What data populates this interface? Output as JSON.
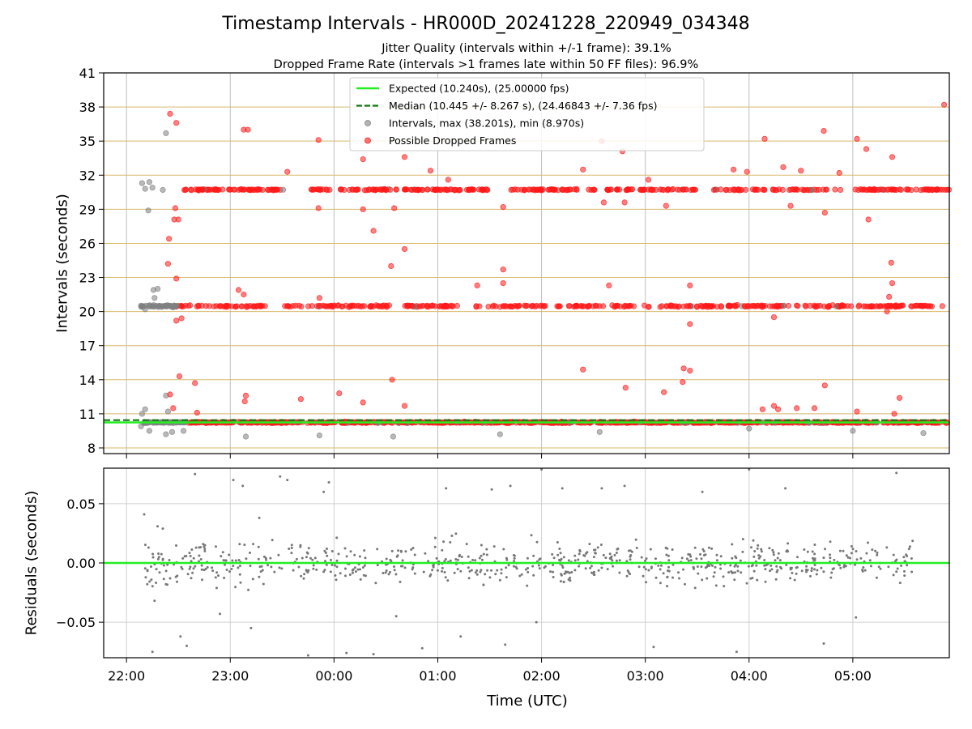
{
  "chart_data": {
    "type": "scatter",
    "title": "Timestamp Intervals - HR000D_20241228_220949_034348",
    "subtitle_lines": [
      "Jitter Quality (intervals within +/-1 frame): 39.1%",
      "Dropped Frame Rate (intervals >1 frames late within 50 FF files): 96.9%"
    ],
    "xlabel": "Time (UTC)",
    "x_tick_labels": [
      "22:00",
      "23:00",
      "00:00",
      "01:00",
      "02:00",
      "03:00",
      "04:00",
      "05:00"
    ],
    "x_range_hours": [
      -0.22,
      7.93
    ],
    "x_tick_hours": [
      0,
      1,
      2,
      3,
      4,
      5,
      6,
      7
    ],
    "top_panel": {
      "ylabel": "Intervals (seconds)",
      "ylim": [
        7.5,
        41
      ],
      "y_ticks": [
        8,
        11,
        14,
        17,
        20,
        23,
        26,
        29,
        32,
        35,
        38,
        41
      ],
      "hgrid_color": "#d9b86a",
      "expected_value": 10.24,
      "median_value": 10.445,
      "max_value": 38.201,
      "min_value": 8.97,
      "legend_position": "upper-center",
      "legend": [
        {
          "label": "Expected (10.240s), (25.00000 fps)",
          "style": "line",
          "color": "#22ee22"
        },
        {
          "label": "Median (10.445 +/- 8.267 s), (24.46843 +/- 7.36 fps)",
          "style": "dashed",
          "color": "#117711"
        },
        {
          "label": "Intervals, max (38.201s), min (8.970s)",
          "style": "marker",
          "color": "#808080"
        },
        {
          "label": "Possible Dropped Frames",
          "style": "marker",
          "color": "#ff1a1a"
        }
      ],
      "series_colors": {
        "intervals": "#808080",
        "dropped": "#ff1a1a"
      },
      "series_levels": [
        10.24,
        20.48,
        30.72
      ],
      "gray_outliers": [
        [
          0.15,
          31.3
        ],
        [
          0.22,
          31.4
        ],
        [
          0.18,
          30.8
        ],
        [
          0.25,
          30.9
        ],
        [
          0.35,
          30.7
        ],
        [
          0.21,
          28.9
        ],
        [
          0.18,
          20.2
        ],
        [
          0.26,
          21.9
        ],
        [
          0.3,
          22.0
        ],
        [
          0.27,
          21.2
        ],
        [
          0.14,
          9.9
        ],
        [
          0.22,
          9.5
        ],
        [
          0.38,
          9.2
        ],
        [
          0.44,
          9.4
        ],
        [
          0.55,
          9.5
        ],
        [
          0.38,
          12.6
        ],
        [
          0.4,
          11.2
        ],
        [
          0.18,
          11.4
        ],
        [
          0.15,
          11.0
        ],
        [
          0.38,
          35.7
        ],
        [
          1.15,
          9.0
        ],
        [
          1.86,
          9.1
        ],
        [
          2.57,
          9.0
        ],
        [
          3.6,
          9.2
        ],
        [
          4.56,
          9.4
        ],
        [
          6.0,
          9.7
        ],
        [
          7.0,
          9.5
        ],
        [
          7.68,
          9.3
        ]
      ],
      "red_outliers": [
        [
          0.42,
          37.4
        ],
        [
          0.48,
          36.6
        ],
        [
          1.13,
          36.0
        ],
        [
          1.17,
          36.0
        ],
        [
          1.85,
          35.1
        ],
        [
          2.28,
          33.4
        ],
        [
          2.68,
          33.6
        ],
        [
          2.93,
          32.4
        ],
        [
          3.1,
          31.6
        ],
        [
          1.55,
          32.3
        ],
        [
          0.47,
          29.1
        ],
        [
          0.5,
          28.1
        ],
        [
          0.46,
          28.1
        ],
        [
          0.41,
          26.4
        ],
        [
          0.4,
          24.2
        ],
        [
          0.48,
          22.9
        ],
        [
          0.48,
          19.2
        ],
        [
          0.53,
          19.4
        ],
        [
          0.51,
          14.3
        ],
        [
          0.42,
          12.7
        ],
        [
          0.45,
          11.5
        ],
        [
          0.66,
          13.7
        ],
        [
          0.68,
          11.1
        ],
        [
          1.08,
          21.9
        ],
        [
          1.13,
          21.5
        ],
        [
          1.15,
          12.6
        ],
        [
          1.14,
          12.1
        ],
        [
          1.85,
          29.1
        ],
        [
          1.86,
          21.2
        ],
        [
          2.28,
          29.0
        ],
        [
          2.38,
          27.1
        ],
        [
          2.55,
          24.0
        ],
        [
          2.58,
          29.1
        ],
        [
          2.68,
          25.5
        ],
        [
          2.68,
          11.7
        ],
        [
          2.56,
          14.0
        ],
        [
          2.28,
          12.0
        ],
        [
          2.05,
          12.8
        ],
        [
          1.68,
          12.3
        ],
        [
          3.38,
          22.3
        ],
        [
          3.63,
          22.5
        ],
        [
          3.63,
          23.7
        ],
        [
          3.63,
          29.2
        ],
        [
          4.4,
          14.9
        ],
        [
          4.4,
          32.5
        ],
        [
          4.58,
          35.0
        ],
        [
          4.6,
          29.6
        ],
        [
          4.65,
          22.3
        ],
        [
          4.78,
          34.1
        ],
        [
          4.8,
          29.6
        ],
        [
          4.81,
          13.3
        ],
        [
          5.03,
          31.6
        ],
        [
          5.2,
          29.3
        ],
        [
          5.18,
          12.9
        ],
        [
          5.36,
          13.8
        ],
        [
          5.37,
          15.0
        ],
        [
          5.43,
          14.8
        ],
        [
          5.43,
          18.9
        ],
        [
          5.43,
          22.3
        ],
        [
          5.85,
          32.5
        ],
        [
          5.98,
          32.3
        ],
        [
          6.15,
          35.2
        ],
        [
          6.33,
          32.7
        ],
        [
          6.4,
          29.3
        ],
        [
          6.5,
          32.4
        ],
        [
          6.13,
          11.4
        ],
        [
          6.24,
          11.7
        ],
        [
          6.28,
          11.4
        ],
        [
          6.46,
          11.5
        ],
        [
          6.63,
          11.5
        ],
        [
          6.24,
          19.5
        ],
        [
          6.72,
          35.9
        ],
        [
          6.73,
          28.7
        ],
        [
          6.73,
          13.5
        ],
        [
          6.87,
          32.2
        ],
        [
          7.04,
          35.2
        ],
        [
          7.13,
          34.3
        ],
        [
          7.15,
          28.1
        ],
        [
          7.04,
          11.2
        ],
        [
          7.33,
          20.0
        ],
        [
          7.35,
          21.3
        ],
        [
          7.4,
          11.0
        ],
        [
          7.45,
          12.4
        ],
        [
          7.37,
          24.3
        ],
        [
          7.38,
          22.5
        ],
        [
          7.38,
          33.6
        ],
        [
          7.88,
          38.2
        ]
      ]
    },
    "bottom_panel": {
      "ylabel": "Residuals (seconds)",
      "ylim": [
        -0.08,
        0.08
      ],
      "y_tick_values": [
        -0.05,
        0.0,
        0.05
      ],
      "y_tick_labels": [
        "−0.05",
        "0.00",
        "0.05"
      ],
      "zero_line_color": "#22ee22",
      "point_color": "#777777",
      "residual_points": [
        [
          0.17,
          0.041
        ],
        [
          0.2,
          -0.018
        ],
        [
          0.25,
          -0.075
        ],
        [
          0.27,
          -0.032
        ],
        [
          0.3,
          0.031
        ],
        [
          0.35,
          0.029
        ],
        [
          0.38,
          -0.018
        ],
        [
          0.42,
          -0.013
        ],
        [
          0.52,
          -0.062
        ],
        [
          0.58,
          -0.07
        ],
        [
          0.66,
          0.075
        ],
        [
          0.9,
          -0.043
        ],
        [
          1.03,
          0.07
        ],
        [
          1.12,
          0.065
        ],
        [
          1.2,
          -0.055
        ],
        [
          1.28,
          0.038
        ],
        [
          1.48,
          0.073
        ],
        [
          1.55,
          0.07
        ],
        [
          1.75,
          -0.078
        ],
        [
          1.9,
          0.06
        ],
        [
          1.95,
          0.068
        ],
        [
          2.12,
          -0.076
        ],
        [
          2.38,
          -0.077
        ],
        [
          2.6,
          -0.045
        ],
        [
          2.85,
          -0.072
        ],
        [
          3.08,
          0.063
        ],
        [
          3.22,
          -0.062
        ],
        [
          3.52,
          0.062
        ],
        [
          3.65,
          -0.069
        ],
        [
          3.7,
          0.065
        ],
        [
          3.95,
          -0.05
        ],
        [
          4.0,
          0.079
        ],
        [
          4.2,
          0.063
        ],
        [
          4.58,
          0.063
        ],
        [
          4.8,
          0.065
        ],
        [
          5.08,
          -0.071
        ],
        [
          5.55,
          0.06
        ],
        [
          5.88,
          -0.075
        ],
        [
          6.0,
          0.079
        ],
        [
          6.35,
          0.063
        ],
        [
          6.72,
          -0.068
        ],
        [
          7.03,
          -0.046
        ],
        [
          7.42,
          0.076
        ]
      ]
    }
  }
}
